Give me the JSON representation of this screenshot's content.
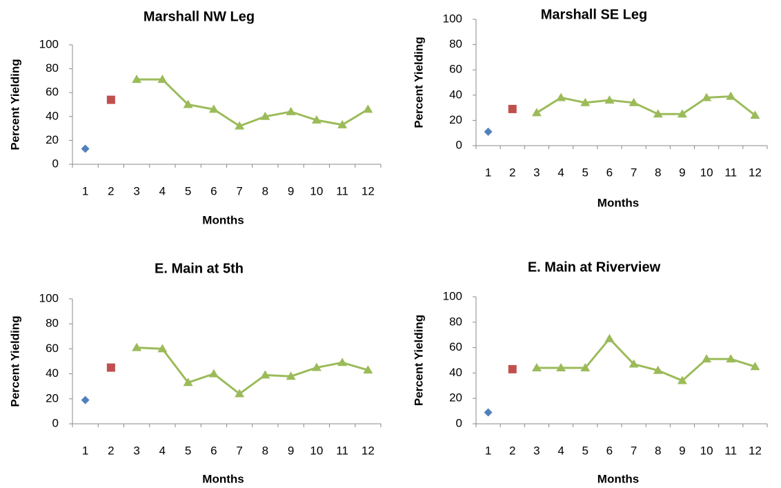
{
  "chart_data": [
    {
      "type": "line",
      "title": "Marshall NW Leg",
      "x_label": "Months",
      "y_label": "Percent Yielding",
      "categories": [
        "1",
        "2",
        "3",
        "4",
        "5",
        "6",
        "7",
        "8",
        "9",
        "10",
        "11",
        "12"
      ],
      "ylim": [
        0,
        100
      ],
      "yticks": [
        0,
        20,
        40,
        60,
        80,
        100
      ],
      "series": [
        {
          "color": "#4f81bd",
          "marker": "diamond",
          "line": false,
          "values": [
            13,
            null,
            null,
            null,
            null,
            null,
            null,
            null,
            null,
            null,
            null,
            null
          ]
        },
        {
          "color": "#c0504d",
          "marker": "square",
          "line": false,
          "values": [
            null,
            54,
            null,
            null,
            null,
            null,
            null,
            null,
            null,
            null,
            null,
            null
          ]
        },
        {
          "color": "#9bbb59",
          "marker": "triangle",
          "line": true,
          "values": [
            null,
            null,
            71,
            71,
            50,
            46,
            32,
            40,
            44,
            37,
            33,
            46
          ]
        }
      ]
    },
    {
      "type": "line",
      "title": "Marshall SE Leg",
      "x_label": "Months",
      "y_label": "Percent Yielding",
      "categories": [
        "1",
        "2",
        "3",
        "4",
        "5",
        "6",
        "7",
        "8",
        "9",
        "10",
        "11",
        "12"
      ],
      "ylim": [
        0,
        100
      ],
      "yticks": [
        0,
        20,
        40,
        60,
        80,
        100
      ],
      "series": [
        {
          "color": "#4f81bd",
          "marker": "diamond",
          "line": false,
          "values": [
            11,
            null,
            null,
            null,
            null,
            null,
            null,
            null,
            null,
            null,
            null,
            null
          ]
        },
        {
          "color": "#c0504d",
          "marker": "square",
          "line": false,
          "values": [
            null,
            29,
            null,
            null,
            null,
            null,
            null,
            null,
            null,
            null,
            null,
            null
          ]
        },
        {
          "color": "#9bbb59",
          "marker": "triangle",
          "line": true,
          "values": [
            null,
            null,
            26,
            38,
            34,
            36,
            34,
            25,
            25,
            38,
            39,
            24
          ]
        }
      ]
    },
    {
      "type": "line",
      "title": "E. Main at 5th",
      "x_label": "Months",
      "y_label": "Percent Yielding",
      "categories": [
        "1",
        "2",
        "3",
        "4",
        "5",
        "6",
        "7",
        "8",
        "9",
        "10",
        "11",
        "12"
      ],
      "ylim": [
        0,
        100
      ],
      "yticks": [
        0,
        20,
        40,
        60,
        80,
        100
      ],
      "series": [
        {
          "color": "#4f81bd",
          "marker": "diamond",
          "line": false,
          "values": [
            19,
            null,
            null,
            null,
            null,
            null,
            null,
            null,
            null,
            null,
            null,
            null
          ]
        },
        {
          "color": "#c0504d",
          "marker": "square",
          "line": false,
          "values": [
            null,
            45,
            null,
            null,
            null,
            null,
            null,
            null,
            null,
            null,
            null,
            null
          ]
        },
        {
          "color": "#9bbb59",
          "marker": "triangle",
          "line": true,
          "values": [
            null,
            null,
            61,
            60,
            33,
            40,
            24,
            39,
            38,
            45,
            49,
            43
          ]
        }
      ]
    },
    {
      "type": "line",
      "title": "E. Main at Riverview",
      "x_label": "Months",
      "y_label": "Percent Yielding",
      "categories": [
        "1",
        "2",
        "3",
        "4",
        "5",
        "6",
        "7",
        "8",
        "9",
        "10",
        "11",
        "12"
      ],
      "ylim": [
        0,
        100
      ],
      "yticks": [
        0,
        20,
        40,
        60,
        80,
        100
      ],
      "series": [
        {
          "color": "#4f81bd",
          "marker": "diamond",
          "line": false,
          "values": [
            9,
            null,
            null,
            null,
            null,
            null,
            null,
            null,
            null,
            null,
            null,
            null
          ]
        },
        {
          "color": "#c0504d",
          "marker": "square",
          "line": false,
          "values": [
            null,
            43,
            null,
            null,
            null,
            null,
            null,
            null,
            null,
            null,
            null,
            null
          ]
        },
        {
          "color": "#9bbb59",
          "marker": "triangle",
          "line": true,
          "values": [
            null,
            null,
            44,
            44,
            44,
            67,
            47,
            42,
            34,
            51,
            51,
            45
          ]
        }
      ]
    }
  ]
}
